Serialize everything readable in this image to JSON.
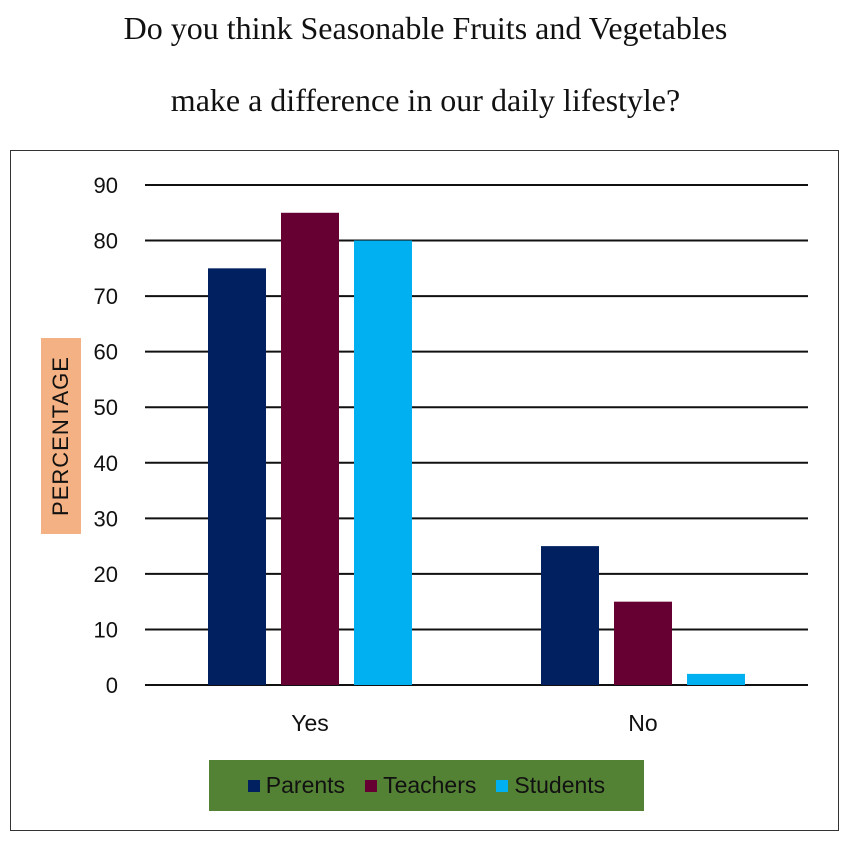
{
  "chart_data": {
    "type": "bar",
    "title": [
      "Do you think Seasonable Fruits and Vegetables",
      "make a difference in our daily lifestyle?"
    ],
    "ylabel": "PERCENTAGE",
    "xlabel": "",
    "categories": [
      "Yes",
      "No"
    ],
    "series": [
      {
        "name": "Parents",
        "values": [
          75,
          25
        ],
        "color": "#002060"
      },
      {
        "name": "Teachers",
        "values": [
          85,
          15
        ],
        "color": "#660033"
      },
      {
        "name": "Students",
        "values": [
          80,
          2
        ],
        "color": "#00b0f0"
      }
    ],
    "ylim": [
      0,
      90
    ],
    "yticks": [
      0,
      10,
      20,
      30,
      40,
      50,
      60,
      70,
      80,
      90
    ],
    "grid": true,
    "legend": "bottom",
    "colors": {
      "ylabel_box": "#f4b183",
      "legend_box": "#548235"
    }
  }
}
